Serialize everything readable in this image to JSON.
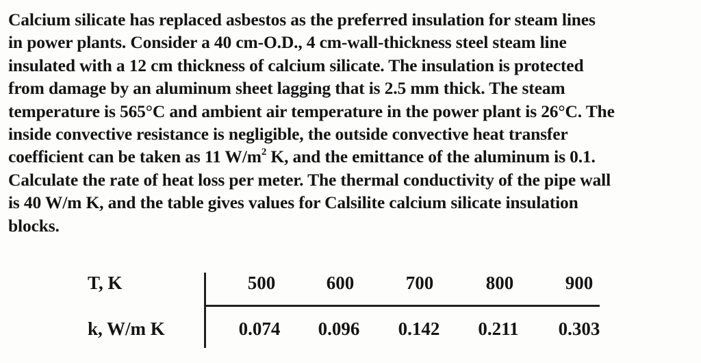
{
  "problem": {
    "lines": [
      "Calcium silicate has replaced asbestos as the preferred insulation for steam lines",
      "in power plants. Consider a 40 cm-O.D., 4 cm-wall-thickness steel steam line",
      "insulated with a 12 cm thickness of calcium silicate. The insulation is protected",
      "from damage by an aluminum sheet lagging that is 2.5 mm thick. The steam",
      "temperature is 565°C and ambient air temperature in the power plant is 26°C. The",
      "inside convective resistance is negligible, the outside convective heat transfer",
      {
        "before": "coefficient can be taken as 11 W/m",
        "sup": "2",
        "after": " K, and the emittance of the aluminum is 0.1."
      },
      "Calculate the rate of heat loss per meter. The thermal conductivity of the pipe wall",
      "is 40 W/m K, and the table gives values for Calsilite calcium silicate insulation",
      "blocks."
    ]
  },
  "table": {
    "row1_label": "T, K",
    "row2_label": "k, W/m K",
    "temperatures": [
      "500",
      "600",
      "700",
      "800",
      "900"
    ],
    "conductivities": [
      "0.074",
      "0.096",
      "0.142",
      "0.211",
      "0.303"
    ]
  }
}
